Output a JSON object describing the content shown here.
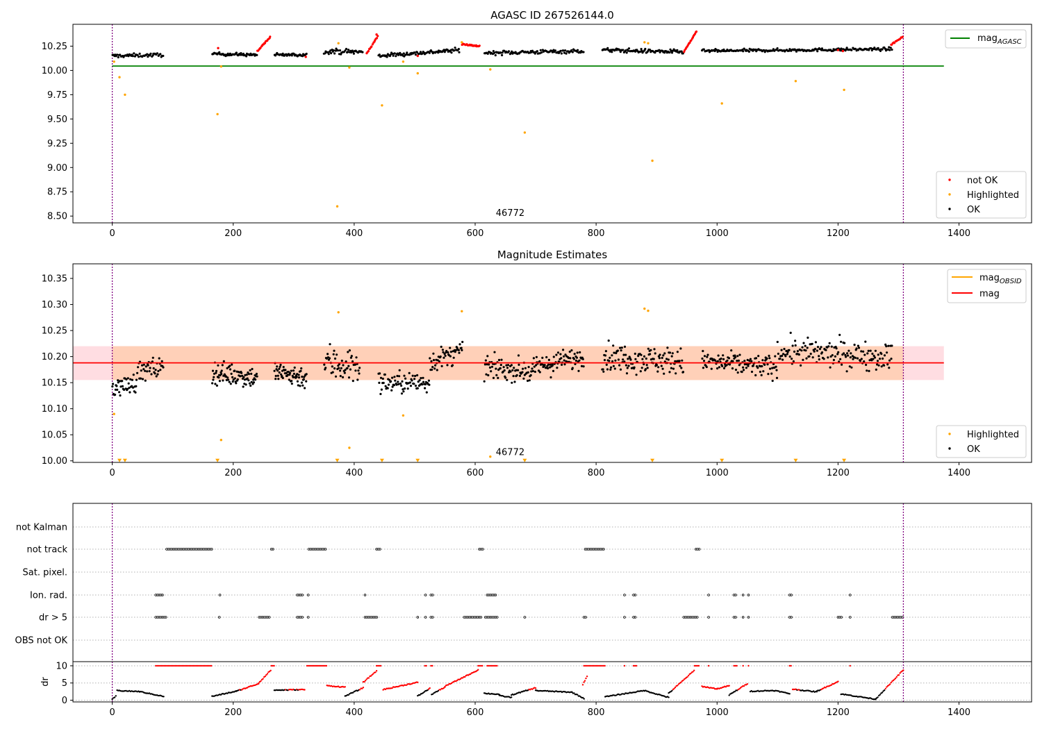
{
  "chart_data": [
    {
      "type": "scatter",
      "title": "AGASC ID 267526144.0",
      "xlim": [
        -65,
        1520
      ],
      "ylim": [
        8.43,
        10.475
      ],
      "xticks": [
        0,
        200,
        400,
        600,
        800,
        1000,
        1200,
        1400
      ],
      "yticks": [
        10.25,
        10.0,
        9.75,
        9.5,
        9.25,
        9.0,
        8.75,
        8.5
      ],
      "ytick_labels": [
        "10.25",
        "10.00",
        "9.75",
        "9.50",
        "9.25",
        "9.00",
        "8.75",
        "8.50"
      ],
      "annotation": {
        "text": "46772",
        "x": 625,
        "y": 8.5
      },
      "vlines": [
        0,
        1308
      ],
      "hline": {
        "name": "mag_AGASC",
        "value": 10.045,
        "x": [
          0,
          1375
        ],
        "color": "#008000"
      },
      "legend_line": {
        "label": "mag",
        "sub": "AGASC",
        "position": "top-right"
      },
      "legend_points": {
        "position": "lower-right",
        "items": [
          {
            "label": "not OK",
            "color": "#ff0000"
          },
          {
            "label": "Highlighted",
            "color": "#ffa500"
          },
          {
            "label": "OK",
            "color": "#000000"
          }
        ]
      },
      "ok_segments": [
        {
          "x": [
            0,
            85
          ],
          "y": [
            10.15,
            10.16
          ],
          "n": 55,
          "sd": 0.018
        },
        {
          "x": [
            165,
            240
          ],
          "y": [
            10.17,
            10.16
          ],
          "n": 60,
          "sd": 0.015
        },
        {
          "x": [
            268,
            322
          ],
          "y": [
            10.16,
            10.16
          ],
          "n": 40,
          "sd": 0.015
        },
        {
          "x": [
            350,
            415
          ],
          "y": [
            10.2,
            10.19
          ],
          "n": 45,
          "sd": 0.025
        },
        {
          "x": [
            440,
            575
          ],
          "y": [
            10.15,
            10.21
          ],
          "n": 95,
          "sd": 0.02
        },
        {
          "x": [
            615,
            780
          ],
          "y": [
            10.18,
            10.2
          ],
          "n": 110,
          "sd": 0.02
        },
        {
          "x": [
            810,
            945
          ],
          "y": [
            10.21,
            10.19
          ],
          "n": 95,
          "sd": 0.02
        },
        {
          "x": [
            975,
            1290
          ],
          "y": [
            10.2,
            10.22
          ],
          "n": 200,
          "sd": 0.015
        }
      ],
      "notok_segments": [
        {
          "x": [
            240,
            262
          ],
          "y": [
            10.2,
            10.35
          ],
          "n": 18
        },
        {
          "x": [
            420,
            440
          ],
          "y": [
            10.17,
            10.36
          ],
          "n": 14
        },
        {
          "x": [
            578,
            608
          ],
          "y": [
            10.27,
            10.25
          ],
          "n": 26
        },
        {
          "x": [
            945,
            967
          ],
          "y": [
            10.19,
            10.41
          ],
          "n": 18
        },
        {
          "x": [
            1287,
            1308
          ],
          "y": [
            10.26,
            10.35
          ],
          "n": 14
        }
      ],
      "notok_points": [
        {
          "x": 175,
          "y": 10.23
        },
        {
          "x": 320,
          "y": 10.14
        },
        {
          "x": 437,
          "y": 10.37
        },
        {
          "x": 505,
          "y": 10.15
        },
        {
          "x": 1200,
          "y": 10.21
        },
        {
          "x": 1208,
          "y": 10.2
        }
      ],
      "highlighted": [
        {
          "x": 3,
          "y": 10.09
        },
        {
          "x": 12,
          "y": 9.93
        },
        {
          "x": 21,
          "y": 9.75
        },
        {
          "x": 174,
          "y": 9.55
        },
        {
          "x": 180,
          "y": 10.04
        },
        {
          "x": 372,
          "y": 8.6
        },
        {
          "x": 374,
          "y": 10.28
        },
        {
          "x": 392,
          "y": 10.03
        },
        {
          "x": 446,
          "y": 9.64
        },
        {
          "x": 481,
          "y": 10.09
        },
        {
          "x": 505,
          "y": 9.97
        },
        {
          "x": 578,
          "y": 10.29
        },
        {
          "x": 625,
          "y": 10.01
        },
        {
          "x": 682,
          "y": 9.36
        },
        {
          "x": 880,
          "y": 10.29
        },
        {
          "x": 886,
          "y": 10.28
        },
        {
          "x": 893,
          "y": 9.07
        },
        {
          "x": 1008,
          "y": 9.66
        },
        {
          "x": 1130,
          "y": 9.89
        },
        {
          "x": 1210,
          "y": 9.8
        }
      ]
    },
    {
      "type": "scatter",
      "title": "Magnitude Estimates",
      "xlim": [
        -65,
        1520
      ],
      "ylim": [
        9.997,
        10.378
      ],
      "xticks": [
        0,
        200,
        400,
        600,
        800,
        1000,
        1200,
        1400
      ],
      "yticks": [
        10.35,
        10.3,
        10.25,
        10.2,
        10.15,
        10.1,
        10.05,
        10.0
      ],
      "ytick_labels": [
        "10.35",
        "10.30",
        "10.25",
        "10.20",
        "10.15",
        "10.10",
        "10.05",
        "10.00"
      ],
      "annotation": {
        "text": "46772",
        "x": 625,
        "y": 10.0
      },
      "vlines": [
        0,
        1308
      ],
      "mag": {
        "value": 10.188,
        "x": [
          -65,
          1375
        ],
        "color": "#ff0000"
      },
      "mag_band_outer": {
        "low": 10.155,
        "high": 10.22,
        "color": "#ffdde2"
      },
      "mag_obsid_band": {
        "low": 10.155,
        "high": 10.22,
        "x": [
          0,
          1308
        ],
        "color": "#ffd0b8"
      },
      "legend_lines": {
        "position": "top-right",
        "items": [
          {
            "label": "mag",
            "sub": "OBSID",
            "color": "#ffa500"
          },
          {
            "label": "mag",
            "sub": "",
            "color": "#ff0000"
          }
        ]
      },
      "legend_points": {
        "position": "lower-right",
        "items": [
          {
            "label": "Highlighted",
            "color": "#ffa500"
          },
          {
            "label": "OK",
            "color": "#000000"
          }
        ]
      },
      "ok_segments": [
        {
          "x": [
            0,
            40
          ],
          "y": [
            10.14,
            10.15
          ],
          "n": 40,
          "sd": 0.018
        },
        {
          "x": [
            40,
            85
          ],
          "y": [
            10.17,
            10.18
          ],
          "n": 40,
          "sd": 0.02
        },
        {
          "x": [
            165,
            240
          ],
          "y": [
            10.17,
            10.16
          ],
          "n": 85,
          "sd": 0.02
        },
        {
          "x": [
            268,
            322
          ],
          "y": [
            10.17,
            10.16
          ],
          "n": 65,
          "sd": 0.02
        },
        {
          "x": [
            350,
            410
          ],
          "y": [
            10.19,
            10.18
          ],
          "n": 55,
          "sd": 0.035
        },
        {
          "x": [
            440,
            525
          ],
          "y": [
            10.15,
            10.15
          ],
          "n": 80,
          "sd": 0.02
        },
        {
          "x": [
            525,
            580
          ],
          "y": [
            10.19,
            10.21
          ],
          "n": 50,
          "sd": 0.02
        },
        {
          "x": [
            615,
            700
          ],
          "y": [
            10.18,
            10.17
          ],
          "n": 80,
          "sd": 0.02
        },
        {
          "x": [
            700,
            780
          ],
          "y": [
            10.18,
            10.2
          ],
          "n": 80,
          "sd": 0.02
        },
        {
          "x": [
            810,
            945
          ],
          "y": [
            10.2,
            10.19
          ],
          "n": 130,
          "sd": 0.025
        },
        {
          "x": [
            975,
            1100
          ],
          "y": [
            10.19,
            10.18
          ],
          "n": 120,
          "sd": 0.02
        },
        {
          "x": [
            1100,
            1290
          ],
          "y": [
            10.21,
            10.2
          ],
          "n": 160,
          "sd": 0.025
        }
      ],
      "highlighted": [
        {
          "x": 3,
          "y": 10.09
        },
        {
          "x": 180,
          "y": 10.04
        },
        {
          "x": 374,
          "y": 10.285
        },
        {
          "x": 392,
          "y": 10.025
        },
        {
          "x": 481,
          "y": 10.087
        },
        {
          "x": 578,
          "y": 10.287
        },
        {
          "x": 625,
          "y": 10.008
        },
        {
          "x": 880,
          "y": 10.292
        },
        {
          "x": 886,
          "y": 10.288
        }
      ],
      "clipped_markers": [
        12,
        21,
        174,
        372,
        446,
        505,
        682,
        893,
        1008,
        1130,
        1210
      ]
    },
    {
      "type": "scatter",
      "title": "",
      "xlim": [
        -65,
        1520
      ],
      "xticks": [
        0,
        200,
        400,
        600,
        800,
        1000,
        1200,
        1400
      ],
      "vlines": [
        0,
        1308
      ],
      "flag_rows": [
        "not Kalman",
        "not track",
        "Sat. pixel.",
        "Ion. rad.",
        "dr > 5",
        "OBS not OK"
      ],
      "flags": {
        "not Kalman": [],
        "not track": [
          [
            90,
            165
          ],
          [
            263,
            268
          ],
          [
            325,
            355
          ],
          [
            437,
            445
          ],
          [
            607,
            615
          ],
          [
            782,
            815
          ],
          [
            965,
            972
          ]
        ],
        "Sat. pixel.": [],
        "Ion. rad.": [
          [
            72,
            85
          ],
          [
            178,
            178
          ],
          [
            306,
            315
          ],
          [
            324,
            324
          ],
          [
            418,
            418
          ],
          [
            518,
            518
          ],
          [
            527,
            530
          ],
          [
            620,
            635
          ],
          [
            847,
            847
          ],
          [
            862,
            867
          ],
          [
            986,
            986
          ],
          [
            1028,
            1033
          ],
          [
            1043,
            1043
          ],
          [
            1052,
            1052
          ],
          [
            1120,
            1124
          ],
          [
            1220,
            1220
          ]
        ],
        "dr > 5": [
          [
            72,
            90
          ],
          [
            177,
            177
          ],
          [
            243,
            262
          ],
          [
            306,
            315
          ],
          [
            324,
            324
          ],
          [
            418,
            440
          ],
          [
            505,
            505
          ],
          [
            518,
            518
          ],
          [
            527,
            530
          ],
          [
            582,
            612
          ],
          [
            617,
            637
          ],
          [
            682,
            682
          ],
          [
            780,
            784
          ],
          [
            847,
            847
          ],
          [
            862,
            867
          ],
          [
            945,
            968
          ],
          [
            986,
            986
          ],
          [
            1028,
            1033
          ],
          [
            1043,
            1043
          ],
          [
            1052,
            1052
          ],
          [
            1120,
            1124
          ],
          [
            1200,
            1207
          ],
          [
            1220,
            1220
          ],
          [
            1290,
            1308
          ]
        ],
        "OBS not OK": []
      },
      "dr_panel": {
        "ylabel": "dr",
        "yticks": [
          0,
          5,
          10
        ],
        "ytick_labels": [
          "0",
          "5",
          "10"
        ],
        "ylim": [
          -0.5,
          11.2
        ],
        "saturated": [
          [
            72,
            165
          ],
          [
            263,
            268
          ],
          [
            322,
            355
          ],
          [
            437,
            445
          ],
          [
            517,
            520
          ],
          [
            527,
            530
          ],
          [
            605,
            612
          ],
          [
            620,
            637
          ],
          [
            780,
            815
          ],
          [
            847,
            847
          ],
          [
            862,
            867
          ],
          [
            963,
            970
          ],
          [
            986,
            986
          ],
          [
            1028,
            1033
          ],
          [
            1043,
            1043
          ],
          [
            1052,
            1052
          ],
          [
            1120,
            1124
          ],
          [
            1220,
            1222
          ]
        ],
        "segments": [
          {
            "x": [
              0,
              6
            ],
            "y0": 0.2,
            "y1": 1.2
          },
          {
            "x": [
              8,
              45
            ],
            "y0": 2.8,
            "y1": 2.5
          },
          {
            "x": [
              45,
              85
            ],
            "y0": 2.5,
            "y1": 1.1
          },
          {
            "x": [
              165,
              205
            ],
            "y0": 1.1,
            "y1": 2.6
          },
          {
            "x": [
              205,
              242
            ],
            "y0": 2.6,
            "y1": 4.8
          },
          {
            "x": [
              242,
              262
            ],
            "y0": 5.0,
            "y1": 8.7
          },
          {
            "x": [
              268,
              318
            ],
            "y0": 2.9,
            "y1": 3.1
          },
          {
            "x": [
              355,
              385
            ],
            "y0": 4.2,
            "y1": 3.8
          },
          {
            "x": [
              385,
              415
            ],
            "y0": 1.2,
            "y1": 3.6
          },
          {
            "x": [
              415,
              437
            ],
            "y0": 5.2,
            "y1": 8.5
          },
          {
            "x": [
              448,
              505
            ],
            "y0": 3.1,
            "y1": 5.2
          },
          {
            "x": [
              505,
              525
            ],
            "y0": 1.2,
            "y1": 3.4
          },
          {
            "x": [
              528,
              550
            ],
            "y0": 1.7,
            "y1": 3.8
          },
          {
            "x": [
              550,
              605
            ],
            "y0": 4.0,
            "y1": 8.8
          },
          {
            "x": [
              615,
              640
            ],
            "y0": 2.0,
            "y1": 1.7
          },
          {
            "x": [
              640,
              660
            ],
            "y0": 1.3,
            "y1": 0.8
          },
          {
            "x": [
              660,
              700
            ],
            "y0": 1.5,
            "y1": 3.6
          },
          {
            "x": [
              700,
              760
            ],
            "y0": 2.8,
            "y1": 2.3
          },
          {
            "x": [
              760,
              780
            ],
            "y0": 2.3,
            "y1": 0.5
          },
          {
            "x": [
              778,
              785
            ],
            "y0": 4.5,
            "y1": 7.0
          },
          {
            "x": [
              815,
              880
            ],
            "y0": 1.0,
            "y1": 2.8
          },
          {
            "x": [
              880,
              920
            ],
            "y0": 2.8,
            "y1": 0.8
          },
          {
            "x": [
              920,
              962
            ],
            "y0": 2.0,
            "y1": 8.6
          },
          {
            "x": [
              975,
              1000
            ],
            "y0": 4.0,
            "y1": 3.3
          },
          {
            "x": [
              1000,
              1020
            ],
            "y0": 3.3,
            "y1": 4.2
          },
          {
            "x": [
              1020,
              1050
            ],
            "y0": 1.5,
            "y1": 4.8
          },
          {
            "x": [
              1055,
              1095
            ],
            "y0": 2.6,
            "y1": 2.8
          },
          {
            "x": [
              1095,
              1120
            ],
            "y0": 2.8,
            "y1": 1.9
          },
          {
            "x": [
              1125,
              1165
            ],
            "y0": 3.2,
            "y1": 2.4
          },
          {
            "x": [
              1165,
              1200
            ],
            "y0": 2.6,
            "y1": 5.4
          },
          {
            "x": [
              1205,
              1262
            ],
            "y0": 1.8,
            "y1": 0.3
          },
          {
            "x": [
              1262,
              1308
            ],
            "y0": 0.3,
            "y1": 8.8
          }
        ]
      }
    }
  ]
}
